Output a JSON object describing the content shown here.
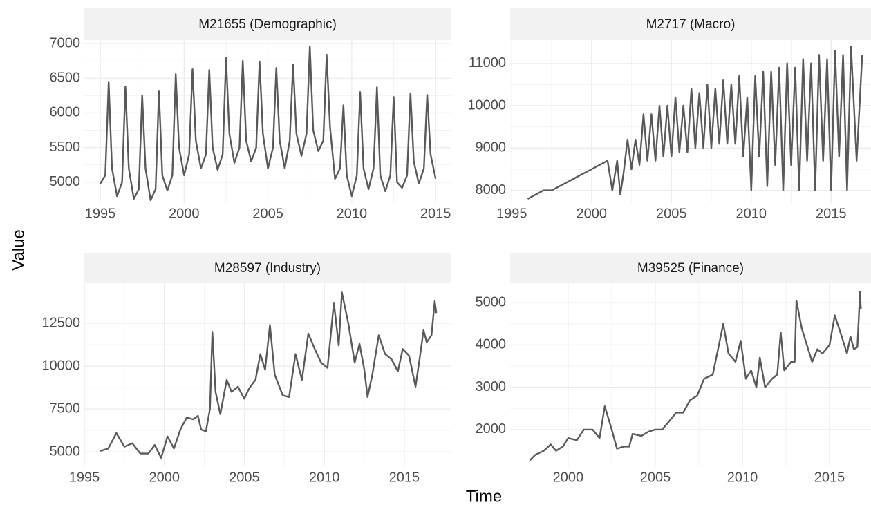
{
  "xlabel": "Time",
  "ylabel": "Value",
  "chart_data": [
    {
      "type": "line",
      "title": "M21655 (Demographic)",
      "color": "#595959",
      "grid": true,
      "x": [
        1995.0,
        1995.3,
        1995.5,
        1995.7,
        1996.0,
        1996.3,
        1996.5,
        1996.7,
        1997.0,
        1997.3,
        1997.5,
        1997.7,
        1998.0,
        1998.3,
        1998.5,
        1998.7,
        1999.0,
        1999.3,
        1999.5,
        1999.7,
        2000.0,
        2000.3,
        2000.5,
        2000.7,
        2001.0,
        2001.3,
        2001.5,
        2001.7,
        2002.0,
        2002.3,
        2002.5,
        2002.7,
        2003.0,
        2003.3,
        2003.5,
        2003.7,
        2004.0,
        2004.3,
        2004.5,
        2004.7,
        2005.0,
        2005.3,
        2005.5,
        2005.7,
        2006.0,
        2006.3,
        2006.5,
        2006.7,
        2007.0,
        2007.3,
        2007.5,
        2007.7,
        2008.0,
        2008.3,
        2008.5,
        2008.7,
        2009.0,
        2009.3,
        2009.5,
        2009.7,
        2010.0,
        2010.3,
        2010.5,
        2010.7,
        2011.0,
        2011.3,
        2011.5,
        2011.7,
        2012.0,
        2012.3,
        2012.5,
        2012.7,
        2013.0,
        2013.3,
        2013.5,
        2013.7,
        2014.0,
        2014.3,
        2014.5,
        2014.7,
        2015.0
      ],
      "values": [
        4980,
        5100,
        6450,
        5200,
        4800,
        5000,
        6380,
        5200,
        4760,
        4900,
        6250,
        5200,
        4740,
        4900,
        6310,
        5100,
        4880,
        5100,
        6560,
        5500,
        5100,
        5400,
        6630,
        5600,
        5200,
        5400,
        6620,
        5500,
        5180,
        5400,
        6790,
        5700,
        5280,
        5500,
        6750,
        5600,
        5300,
        5500,
        6740,
        5700,
        5200,
        5500,
        6650,
        5600,
        5200,
        5600,
        6700,
        5700,
        5380,
        5700,
        6960,
        5750,
        5450,
        5600,
        6840,
        5800,
        5050,
        5200,
        6110,
        5100,
        4800,
        5100,
        6300,
        5200,
        4900,
        5200,
        6370,
        5100,
        4870,
        5100,
        6230,
        5000,
        4920,
        5100,
        6280,
        5300,
        4980,
        5200,
        6260,
        5400,
        5050
      ],
      "xlim": [
        1994.05,
        2015.9
      ],
      "ylim": [
        4700,
        7050
      ],
      "xticks": [
        1995,
        2000,
        2005,
        2010,
        2015
      ],
      "yticks": [
        5000,
        5500,
        6000,
        6500,
        7000
      ]
    },
    {
      "type": "line",
      "title": "M2717 (Macro)",
      "color": "#595959",
      "grid": true,
      "x": [
        1996.0,
        1996.5,
        1997.0,
        1997.5,
        1998.0,
        1998.5,
        1999.0,
        1999.5,
        2000.0,
        2000.5,
        2001.0,
        2001.3,
        2001.6,
        2001.8,
        2002.0,
        2002.25,
        2002.5,
        2002.75,
        2003.0,
        2003.25,
        2003.5,
        2003.75,
        2004.0,
        2004.25,
        2004.5,
        2004.75,
        2005.0,
        2005.25,
        2005.5,
        2005.75,
        2006.0,
        2006.25,
        2006.5,
        2006.75,
        2007.0,
        2007.25,
        2007.5,
        2007.75,
        2008.0,
        2008.25,
        2008.5,
        2008.75,
        2009.0,
        2009.25,
        2009.5,
        2009.75,
        2010.0,
        2010.25,
        2010.5,
        2010.75,
        2011.0,
        2011.25,
        2011.5,
        2011.75,
        2012.0,
        2012.25,
        2012.5,
        2012.75,
        2013.0,
        2013.25,
        2013.5,
        2013.75,
        2014.0,
        2014.25,
        2014.5,
        2014.75,
        2015.0,
        2015.25,
        2015.5,
        2015.75,
        2016.0,
        2016.25,
        2016.6,
        2016.95
      ],
      "values": [
        7800,
        7900,
        8000,
        8000,
        8100,
        8200,
        8300,
        8400,
        8500,
        8600,
        8700,
        8000,
        8700,
        7900,
        8400,
        9200,
        8500,
        9200,
        8600,
        9800,
        8700,
        9800,
        8700,
        10000,
        8800,
        10000,
        8800,
        10200,
        8900,
        10000,
        8900,
        10400,
        9000,
        10300,
        9000,
        10500,
        9000,
        10400,
        9100,
        10600,
        9100,
        10500,
        9100,
        10700,
        8800,
        10200,
        8000,
        10700,
        8800,
        10800,
        8100,
        10800,
        8600,
        10900,
        8000,
        11000,
        8600,
        10900,
        8000,
        11100,
        8700,
        11000,
        8000,
        11200,
        8700,
        11100,
        8000,
        11300,
        8800,
        11200,
        8000,
        11400,
        8700,
        11200
      ],
      "xlim": [
        1994.9,
        2017.5
      ],
      "ylim": [
        7700,
        11550
      ],
      "xticks": [
        1995,
        2000,
        2005,
        2010,
        2015
      ],
      "yticks": [
        8000,
        9000,
        10000,
        11000
      ]
    },
    {
      "type": "line",
      "title": "M28597 (Industry)",
      "color": "#595959",
      "grid": true,
      "x": [
        1996.0,
        1996.5,
        1997.0,
        1997.5,
        1998.0,
        1998.5,
        1999.0,
        1999.4,
        1999.8,
        2000.2,
        2000.6,
        2001.0,
        2001.4,
        2001.8,
        2002.1,
        2002.3,
        2002.6,
        2002.85,
        2003.0,
        2003.2,
        2003.5,
        2003.9,
        2004.2,
        2004.6,
        2005.0,
        2005.3,
        2005.7,
        2006.0,
        2006.3,
        2006.6,
        2006.9,
        2007.4,
        2007.8,
        2008.2,
        2008.6,
        2009.0,
        2009.4,
        2009.8,
        2010.2,
        2010.6,
        2010.9,
        2011.1,
        2011.5,
        2011.9,
        2012.2,
        2012.5,
        2012.7,
        2013.0,
        2013.4,
        2013.8,
        2014.2,
        2014.6,
        2014.9,
        2015.3,
        2015.7,
        2016.0,
        2016.2,
        2016.4,
        2016.7,
        2016.9,
        2017.0
      ],
      "values": [
        5050,
        5200,
        6100,
        5300,
        5500,
        4900,
        4900,
        5400,
        4650,
        5900,
        5200,
        6300,
        7000,
        6900,
        7100,
        6300,
        6200,
        7500,
        12000,
        8500,
        7200,
        9200,
        8500,
        8800,
        8100,
        8700,
        9200,
        10700,
        9800,
        12400,
        9500,
        8300,
        8200,
        10700,
        9200,
        11900,
        11000,
        10200,
        9900,
        13700,
        11200,
        14300,
        12500,
        10200,
        11300,
        9800,
        8200,
        9500,
        11800,
        10700,
        10400,
        9700,
        11000,
        10600,
        8800,
        10700,
        12100,
        11400,
        11800,
        13800,
        13100
      ],
      "xlim": [
        1995.0,
        2017.9
      ],
      "ylim": [
        4200,
        14840
      ],
      "xticks": [
        1995,
        2000,
        2005,
        2010,
        2015
      ],
      "yticks": [
        5000,
        7500,
        10000,
        12500
      ]
    },
    {
      "type": "line",
      "title": "M39525 (Finance)",
      "color": "#595959",
      "grid": true,
      "x": [
        1997.8,
        1998.1,
        1998.6,
        1999.0,
        1999.3,
        1999.7,
        2000.0,
        2000.5,
        2000.9,
        2001.4,
        2001.8,
        2002.1,
        2002.5,
        2002.8,
        2003.2,
        2003.5,
        2003.7,
        2004.2,
        2004.6,
        2005.0,
        2005.4,
        2005.8,
        2006.2,
        2006.6,
        2007.0,
        2007.4,
        2007.8,
        2008.3,
        2008.6,
        2008.9,
        2009.2,
        2009.6,
        2009.9,
        2010.2,
        2010.5,
        2010.8,
        2011.0,
        2011.3,
        2011.7,
        2012.0,
        2012.2,
        2012.4,
        2012.8,
        2013.0,
        2013.1,
        2013.4,
        2013.7,
        2014.0,
        2014.3,
        2014.6,
        2015.0,
        2015.3,
        2015.7,
        2016.0,
        2016.2,
        2016.4,
        2016.6,
        2016.75,
        2016.8
      ],
      "values": [
        1270,
        1400,
        1500,
        1650,
        1500,
        1600,
        1800,
        1750,
        2000,
        2000,
        1800,
        2550,
        2000,
        1550,
        1600,
        1600,
        1900,
        1850,
        1950,
        2000,
        2000,
        2200,
        2400,
        2400,
        2700,
        2800,
        3200,
        3300,
        3900,
        4500,
        3800,
        3600,
        4100,
        3200,
        3400,
        3000,
        3700,
        3000,
        3200,
        3300,
        4300,
        3400,
        3600,
        3600,
        5050,
        4400,
        4000,
        3600,
        3900,
        3800,
        4000,
        4700,
        4200,
        3800,
        4200,
        3900,
        3950,
        5250,
        4850
      ],
      "xlim": [
        1996.67,
        2017.38
      ],
      "ylim": [
        1150,
        5460
      ],
      "xticks": [
        2000,
        2005,
        2010,
        2015
      ],
      "yticks": [
        2000,
        3000,
        4000,
        5000
      ]
    }
  ]
}
